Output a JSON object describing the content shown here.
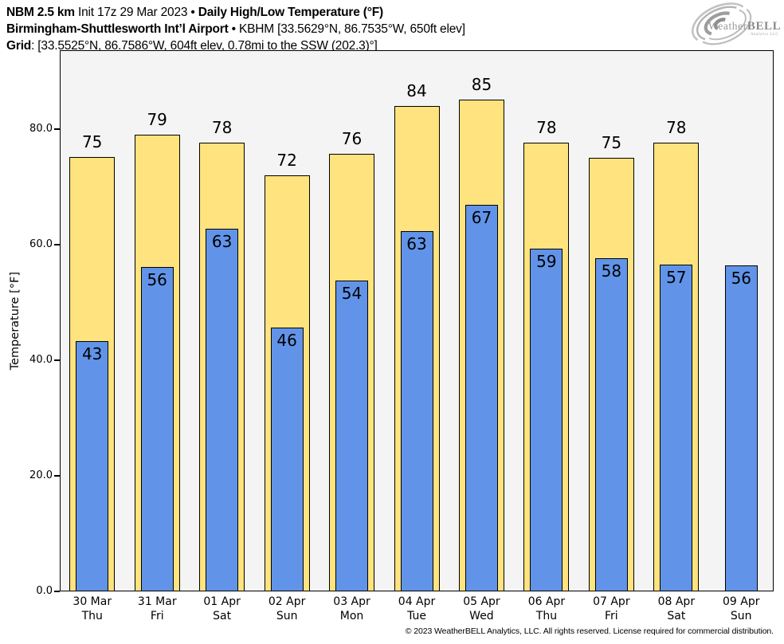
{
  "header": {
    "model": "NBM 2.5 km",
    "init": " Init 17z 29 Mar 2023 • ",
    "product": "Daily High/Low Temperature (°F)",
    "station": "Birmingham-Shuttlesworth Int’l Airport",
    "station_sep": " • ",
    "station_meta": "KBHM [33.5629°N, 86.7535°W, 650ft elev]",
    "grid_label": "Grid",
    "grid_meta": ": [33.5525°N, 86.7586°W, 604ft elev, 0.78mi to the SSW (202.3)°]"
  },
  "logo": {
    "brand_part1": "Weather",
    "brand_part2": "BELL",
    "subtitle": "Analytics LLC"
  },
  "footer": {
    "copyright": "© 2023 WeatherBELL Analytics, LLC. All rights reserved. License required for commercial distribution."
  },
  "chart_data": {
    "type": "bar",
    "title": "Daily High/Low Temperature (°F)",
    "ylabel": "Temperature [°F]",
    "ylim": [
      0,
      93.66
    ],
    "yticks": [
      0,
      20,
      40,
      60,
      80
    ],
    "ytick_labels": [
      "0.0",
      "20.0",
      "40.0",
      "60.0",
      "80.0"
    ],
    "grid": false,
    "legend": "none",
    "plot_bg": "#f4f4f4",
    "categories": [
      {
        "date": "30 Mar",
        "day": "Thu"
      },
      {
        "date": "31 Mar",
        "day": "Fri"
      },
      {
        "date": "01 Apr",
        "day": "Sat"
      },
      {
        "date": "02 Apr",
        "day": "Sun"
      },
      {
        "date": "03 Apr",
        "day": "Mon"
      },
      {
        "date": "04 Apr",
        "day": "Tue"
      },
      {
        "date": "05 Apr",
        "day": "Wed"
      },
      {
        "date": "06 Apr",
        "day": "Thu"
      },
      {
        "date": "07 Apr",
        "day": "Fri"
      },
      {
        "date": "08 Apr",
        "day": "Sat"
      },
      {
        "date": "09 Apr",
        "day": "Sun"
      }
    ],
    "series": [
      {
        "name": "High",
        "color": "#FFE37E",
        "edge": "#000000",
        "labels": [
          75,
          79,
          78,
          72,
          76,
          84,
          85,
          78,
          75,
          78,
          null
        ],
        "values": [
          75.2,
          79.1,
          77.7,
          72.0,
          75.8,
          84.0,
          85.1,
          77.6,
          75.1,
          77.7,
          null
        ]
      },
      {
        "name": "Low",
        "color": "#6194E9",
        "edge": "#000000",
        "labels": [
          43,
          56,
          63,
          46,
          54,
          63,
          67,
          59,
          58,
          57,
          56
        ],
        "values": [
          43.3,
          56.2,
          62.8,
          45.7,
          53.8,
          62.4,
          66.9,
          59.3,
          57.6,
          56.5,
          56.4
        ]
      }
    ]
  }
}
